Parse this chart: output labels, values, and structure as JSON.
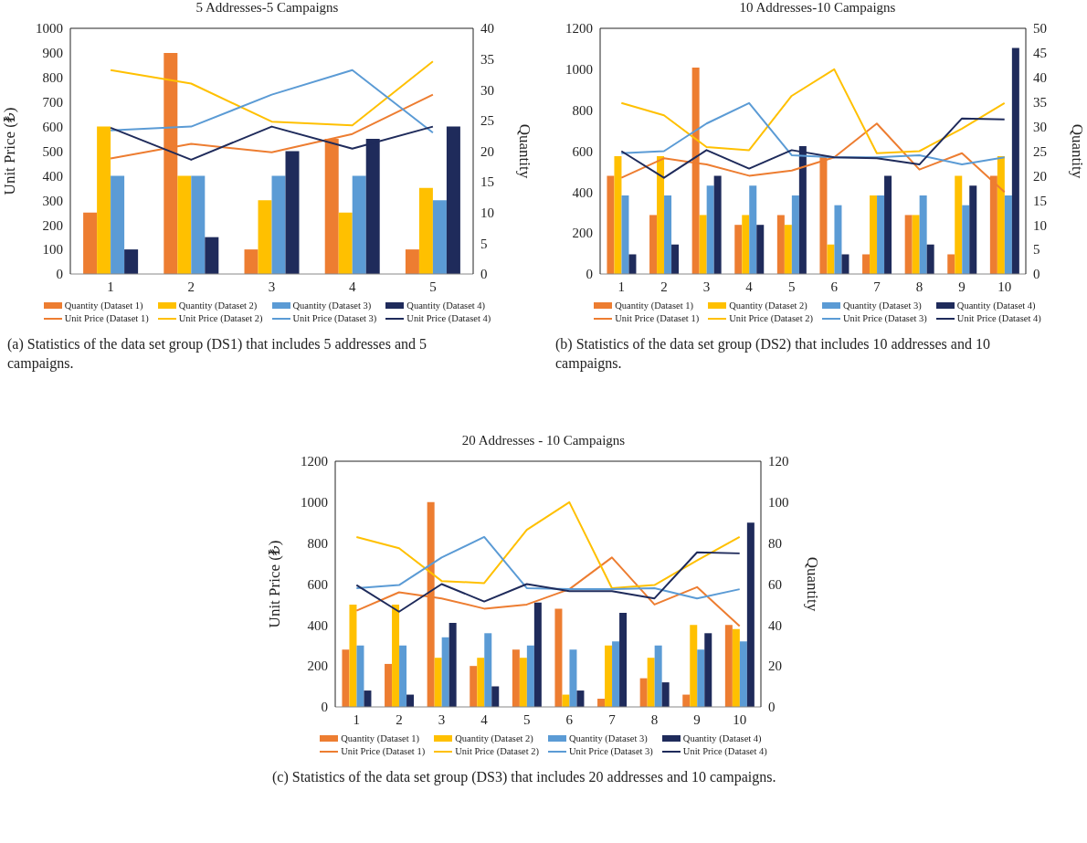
{
  "chart_data": [
    {
      "type": "bar",
      "title": "5 Addresses-5 Campaigns",
      "ylabel": "Unit Price (₺)",
      "y2label": "Quantity",
      "categories": [
        "1",
        "2",
        "3",
        "4",
        "5"
      ],
      "series": [
        {
          "name": "Quantity (Dataset 1)",
          "color": "#ed7d31",
          "axis": "y2",
          "values": [
            10,
            36,
            4,
            22,
            4
          ]
        },
        {
          "name": "Quantity (Dataset 2)",
          "color": "#ffc000",
          "axis": "y2",
          "values": [
            24,
            16,
            12,
            10,
            14
          ]
        },
        {
          "name": "Quantity (Dataset 3)",
          "color": "#5b9bd5",
          "axis": "y2",
          "values": [
            16,
            16,
            16,
            16,
            12
          ]
        },
        {
          "name": "Quantity (Dataset 4)",
          "color": "#1f2b5b",
          "axis": "y2",
          "values": [
            4,
            6,
            20,
            22,
            24
          ]
        },
        {
          "name": "Unit Price (Dataset 1)",
          "type": "line",
          "color": "#ed7d31",
          "values": [
            470,
            530,
            495,
            570,
            730
          ]
        },
        {
          "name": "Unit Price (Dataset 2)",
          "type": "line",
          "color": "#ffc000",
          "values": [
            830,
            775,
            620,
            605,
            865
          ]
        },
        {
          "name": "Unit Price (Dataset 3)",
          "type": "line",
          "color": "#5b9bd5",
          "values": [
            585,
            600,
            730,
            830,
            575
          ]
        },
        {
          "name": "Unit Price (Dataset 4)",
          "type": "line",
          "color": "#1f2b5b",
          "values": [
            595,
            465,
            600,
            510,
            600
          ]
        }
      ],
      "ylim": [
        0,
        1000
      ],
      "yticks": [
        0,
        100,
        200,
        300,
        400,
        500,
        600,
        700,
        800,
        900,
        1000
      ],
      "y2lim": [
        0,
        40
      ],
      "y2ticks": [
        0,
        5,
        10,
        15,
        20,
        25,
        30,
        35,
        40
      ],
      "legend": "bottom",
      "annotations": [
        "(a) Statistics of the data set group (DS1) that includes 5 addresses and 5 campaigns."
      ]
    },
    {
      "type": "bar",
      "title": "10 Addresses-10 Campaigns",
      "y2label": "Quantity",
      "categories": [
        "1",
        "2",
        "3",
        "4",
        "5",
        "6",
        "7",
        "8",
        "9",
        "10"
      ],
      "series": [
        {
          "name": "Quantity (Dataset 1)",
          "color": "#ed7d31",
          "axis": "y2",
          "values": [
            20,
            12,
            42,
            10,
            12,
            24,
            4,
            12,
            4,
            20
          ]
        },
        {
          "name": "Quantity (Dataset 2)",
          "color": "#ffc000",
          "axis": "y2",
          "values": [
            24,
            24,
            12,
            12,
            10,
            6,
            16,
            12,
            20,
            24
          ]
        },
        {
          "name": "Quantity (Dataset 3)",
          "color": "#5b9bd5",
          "axis": "y2",
          "values": [
            16,
            16,
            18,
            18,
            16,
            14,
            16,
            16,
            14,
            16
          ]
        },
        {
          "name": "Quantity (Dataset 4)",
          "color": "#1f2b5b",
          "axis": "y2",
          "values": [
            4,
            6,
            20,
            10,
            26,
            4,
            20,
            6,
            18,
            46
          ]
        },
        {
          "name": "Unit Price (Dataset 1)",
          "type": "line",
          "color": "#ed7d31",
          "values": [
            470,
            565,
            535,
            480,
            505,
            570,
            735,
            510,
            590,
            400
          ]
        },
        {
          "name": "Unit Price (Dataset 2)",
          "type": "line",
          "color": "#ffc000",
          "values": [
            835,
            775,
            620,
            605,
            870,
            1000,
            590,
            600,
            710,
            835
          ]
        },
        {
          "name": "Unit Price (Dataset 3)",
          "type": "line",
          "color": "#5b9bd5",
          "values": [
            590,
            600,
            735,
            835,
            580,
            570,
            570,
            580,
            535,
            570
          ]
        },
        {
          "name": "Unit Price (Dataset 4)",
          "type": "line",
          "color": "#1f2b5b",
          "values": [
            600,
            470,
            605,
            515,
            605,
            570,
            565,
            535,
            760,
            755
          ]
        }
      ],
      "ylim": [
        0,
        1200
      ],
      "yticks": [
        0,
        200,
        400,
        600,
        800,
        1000,
        1200
      ],
      "y2lim": [
        0,
        50
      ],
      "y2ticks": [
        0,
        5,
        10,
        15,
        20,
        25,
        30,
        35,
        40,
        45,
        50
      ],
      "legend": "bottom",
      "annotations": [
        "(b) Statistics of the data set group (DS2) that includes 10 addresses and 10 campaigns."
      ]
    },
    {
      "type": "bar",
      "title": "20 Addresses - 10 Campaigns",
      "ylabel": "Unit Price (₺)",
      "y2label": "Quantity",
      "categories": [
        "1",
        "2",
        "3",
        "4",
        "5",
        "6",
        "7",
        "8",
        "9",
        "10"
      ],
      "series": [
        {
          "name": "Quantity (Dataset 1)",
          "color": "#ed7d31",
          "axis": "y2",
          "values": [
            28,
            21,
            100,
            20,
            28,
            48,
            4,
            14,
            6,
            40
          ]
        },
        {
          "name": "Quantity (Dataset 2)",
          "color": "#ffc000",
          "axis": "y2",
          "values": [
            50,
            50,
            24,
            24,
            24,
            6,
            30,
            24,
            40,
            38
          ]
        },
        {
          "name": "Quantity (Dataset 3)",
          "color": "#5b9bd5",
          "axis": "y2",
          "values": [
            30,
            30,
            34,
            36,
            30,
            28,
            32,
            30,
            28,
            32
          ]
        },
        {
          "name": "Quantity (Dataset 4)",
          "color": "#1f2b5b",
          "axis": "y2",
          "values": [
            8,
            6,
            41,
            10,
            51,
            8,
            46,
            12,
            36,
            90
          ]
        },
        {
          "name": "Unit Price (Dataset 1)",
          "type": "line",
          "color": "#ed7d31",
          "values": [
            470,
            560,
            530,
            480,
            500,
            575,
            730,
            500,
            585,
            395
          ]
        },
        {
          "name": "Unit Price (Dataset 2)",
          "type": "line",
          "color": "#ffc000",
          "values": [
            830,
            775,
            615,
            605,
            865,
            1000,
            580,
            595,
            715,
            830
          ]
        },
        {
          "name": "Unit Price (Dataset 3)",
          "type": "line",
          "color": "#5b9bd5",
          "values": [
            580,
            595,
            730,
            830,
            580,
            575,
            575,
            580,
            530,
            575
          ]
        },
        {
          "name": "Unit Price (Dataset 4)",
          "type": "line",
          "color": "#1f2b5b",
          "values": [
            595,
            465,
            600,
            515,
            600,
            565,
            565,
            530,
            755,
            750
          ]
        }
      ],
      "ylim": [
        0,
        1200
      ],
      "yticks": [
        0,
        200,
        400,
        600,
        800,
        1000,
        1200
      ],
      "y2lim": [
        0,
        120
      ],
      "y2ticks": [
        0,
        20,
        40,
        60,
        80,
        100,
        120
      ],
      "legend": "bottom",
      "annotations": [
        "(c) Statistics of the data set group (DS3) that includes 20 addresses and 10 campaigns."
      ]
    }
  ]
}
